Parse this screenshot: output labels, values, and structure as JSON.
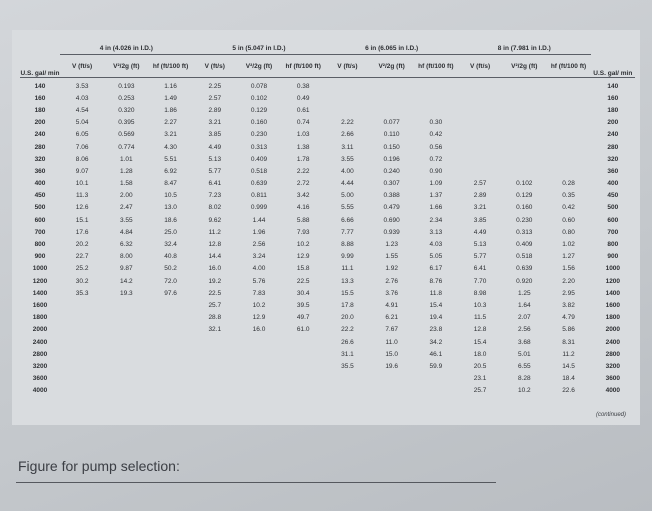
{
  "table": {
    "gpm_header": "U.S. gal/ min",
    "groups": [
      "4 in (4.026 in I.D.)",
      "5 in (5.047 in I.D.)",
      "6 in (6.065 in I.D.)",
      "8 in (7.981 in I.D.)"
    ],
    "sub_headers": [
      "V (ft/s)",
      "V²/2g (ft)",
      "hf (ft/100 ft)"
    ],
    "rows": [
      [
        "140",
        "3.53",
        "0.193",
        "1.16",
        "2.25",
        "0.078",
        "0.38",
        null,
        null,
        null,
        null,
        null,
        null
      ],
      [
        "160",
        "4.03",
        "0.253",
        "1.49",
        "2.57",
        "0.102",
        "0.49",
        null,
        null,
        null,
        null,
        null,
        null
      ],
      [
        "180",
        "4.54",
        "0.320",
        "1.86",
        "2.89",
        "0.129",
        "0.61",
        null,
        null,
        null,
        null,
        null,
        null
      ],
      [
        "200",
        "5.04",
        "0.395",
        "2.27",
        "3.21",
        "0.160",
        "0.74",
        "2.22",
        "0.077",
        "0.30",
        null,
        null,
        null
      ],
      [
        "240",
        "6.05",
        "0.569",
        "3.21",
        "3.85",
        "0.230",
        "1.03",
        "2.66",
        "0.110",
        "0.42",
        null,
        null,
        null
      ],
      [
        "280",
        "7.06",
        "0.774",
        "4.30",
        "4.49",
        "0.313",
        "1.38",
        "3.11",
        "0.150",
        "0.56",
        null,
        null,
        null
      ],
      [
        "320",
        "8.06",
        "1.01",
        "5.51",
        "5.13",
        "0.409",
        "1.78",
        "3.55",
        "0.196",
        "0.72",
        null,
        null,
        null
      ],
      [
        "360",
        "9.07",
        "1.28",
        "6.92",
        "5.77",
        "0.518",
        "2.22",
        "4.00",
        "0.240",
        "0.90",
        null,
        null,
        null
      ],
      [
        "400",
        "10.1",
        "1.58",
        "8.47",
        "6.41",
        "0.639",
        "2.72",
        "4.44",
        "0.307",
        "1.09",
        "2.57",
        "0.102",
        "0.28"
      ],
      [
        "450",
        "11.3",
        "2.00",
        "10.5",
        "7.23",
        "0.811",
        "3.42",
        "5.00",
        "0.388",
        "1.37",
        "2.89",
        "0.129",
        "0.35"
      ],
      [
        "500",
        "12.6",
        "2.47",
        "13.0",
        "8.02",
        "0.999",
        "4.16",
        "5.55",
        "0.479",
        "1.66",
        "3.21",
        "0.160",
        "0.42"
      ],
      [
        "600",
        "15.1",
        "3.55",
        "18.6",
        "9.62",
        "1.44",
        "5.88",
        "6.66",
        "0.690",
        "2.34",
        "3.85",
        "0.230",
        "0.60"
      ],
      [
        "700",
        "17.6",
        "4.84",
        "25.0",
        "11.2",
        "1.96",
        "7.93",
        "7.77",
        "0.939",
        "3.13",
        "4.49",
        "0.313",
        "0.80"
      ],
      [
        "800",
        "20.2",
        "6.32",
        "32.4",
        "12.8",
        "2.56",
        "10.2",
        "8.88",
        "1.23",
        "4.03",
        "5.13",
        "0.409",
        "1.02"
      ],
      [
        "900",
        "22.7",
        "8.00",
        "40.8",
        "14.4",
        "3.24",
        "12.9",
        "9.99",
        "1.55",
        "5.05",
        "5.77",
        "0.518",
        "1.27"
      ],
      [
        "1000",
        "25.2",
        "9.87",
        "50.2",
        "16.0",
        "4.00",
        "15.8",
        "11.1",
        "1.92",
        "6.17",
        "6.41",
        "0.639",
        "1.56"
      ],
      [
        "1200",
        "30.2",
        "14.2",
        "72.0",
        "19.2",
        "5.76",
        "22.5",
        "13.3",
        "2.76",
        "8.76",
        "7.70",
        "0.920",
        "2.20"
      ],
      [
        "1400",
        "35.3",
        "19.3",
        "97.6",
        "22.5",
        "7.83",
        "30.4",
        "15.5",
        "3.76",
        "11.8",
        "8.98",
        "1.25",
        "2.95"
      ],
      [
        "1600",
        null,
        null,
        null,
        "25.7",
        "10.2",
        "39.5",
        "17.8",
        "4.91",
        "15.4",
        "10.3",
        "1.64",
        "3.82"
      ],
      [
        "1800",
        null,
        null,
        null,
        "28.8",
        "12.9",
        "49.7",
        "20.0",
        "6.21",
        "19.4",
        "11.5",
        "2.07",
        "4.79"
      ],
      [
        "2000",
        null,
        null,
        null,
        "32.1",
        "16.0",
        "61.0",
        "22.2",
        "7.67",
        "23.8",
        "12.8",
        "2.56",
        "5.86"
      ],
      [
        "2400",
        null,
        null,
        null,
        null,
        null,
        null,
        "26.6",
        "11.0",
        "34.2",
        "15.4",
        "3.68",
        "8.31"
      ],
      [
        "2800",
        null,
        null,
        null,
        null,
        null,
        null,
        "31.1",
        "15.0",
        "46.1",
        "18.0",
        "5.01",
        "11.2"
      ],
      [
        "3200",
        null,
        null,
        null,
        null,
        null,
        null,
        "35.5",
        "19.6",
        "59.9",
        "20.5",
        "6.55",
        "14.5"
      ],
      [
        "3600",
        null,
        null,
        null,
        null,
        null,
        null,
        null,
        null,
        null,
        "23.1",
        "8.28",
        "18.4"
      ],
      [
        "4000",
        null,
        null,
        null,
        null,
        null,
        null,
        null,
        null,
        null,
        "25.7",
        "10.2",
        "22.6"
      ]
    ],
    "note": "(continued)"
  },
  "caption": "Figure for pump selection:"
}
